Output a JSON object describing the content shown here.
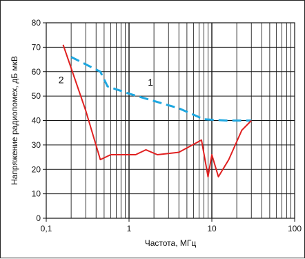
{
  "chart_data": {
    "type": "line",
    "xscale": "log",
    "xlim": [
      0.1,
      100
    ],
    "ylim": [
      0,
      80
    ],
    "xlabel": "Частота, МГц",
    "ylabel": "Напряжение радиопомех, дБ мкВ",
    "x_ticks": [
      {
        "value": 0.1,
        "label": "0,1"
      },
      {
        "value": 1,
        "label": "1"
      },
      {
        "value": 10,
        "label": "10"
      },
      {
        "value": 100,
        "label": "100"
      }
    ],
    "y_ticks": [
      0,
      10,
      20,
      30,
      40,
      50,
      60,
      70,
      80
    ],
    "grid": true,
    "series": [
      {
        "name": "1",
        "color": "#1ea7e0",
        "style": "dashed",
        "points": [
          [
            0.2,
            66
          ],
          [
            0.45,
            60
          ],
          [
            0.55,
            54
          ],
          [
            1,
            51
          ],
          [
            2,
            48
          ],
          [
            4,
            45
          ],
          [
            8,
            40.5
          ],
          [
            15,
            40
          ],
          [
            30,
            40
          ]
        ]
      },
      {
        "name": "2",
        "color": "#e02020",
        "style": "solid",
        "points": [
          [
            0.16,
            71
          ],
          [
            0.3,
            44
          ],
          [
            0.45,
            24
          ],
          [
            0.6,
            26
          ],
          [
            0.8,
            26
          ],
          [
            1.2,
            26
          ],
          [
            1.6,
            28
          ],
          [
            2.2,
            26
          ],
          [
            4,
            27
          ],
          [
            7.5,
            32
          ],
          [
            9,
            17
          ],
          [
            10,
            26
          ],
          [
            12,
            17
          ],
          [
            16,
            24
          ],
          [
            23,
            36
          ],
          [
            30,
            40
          ]
        ]
      }
    ]
  }
}
